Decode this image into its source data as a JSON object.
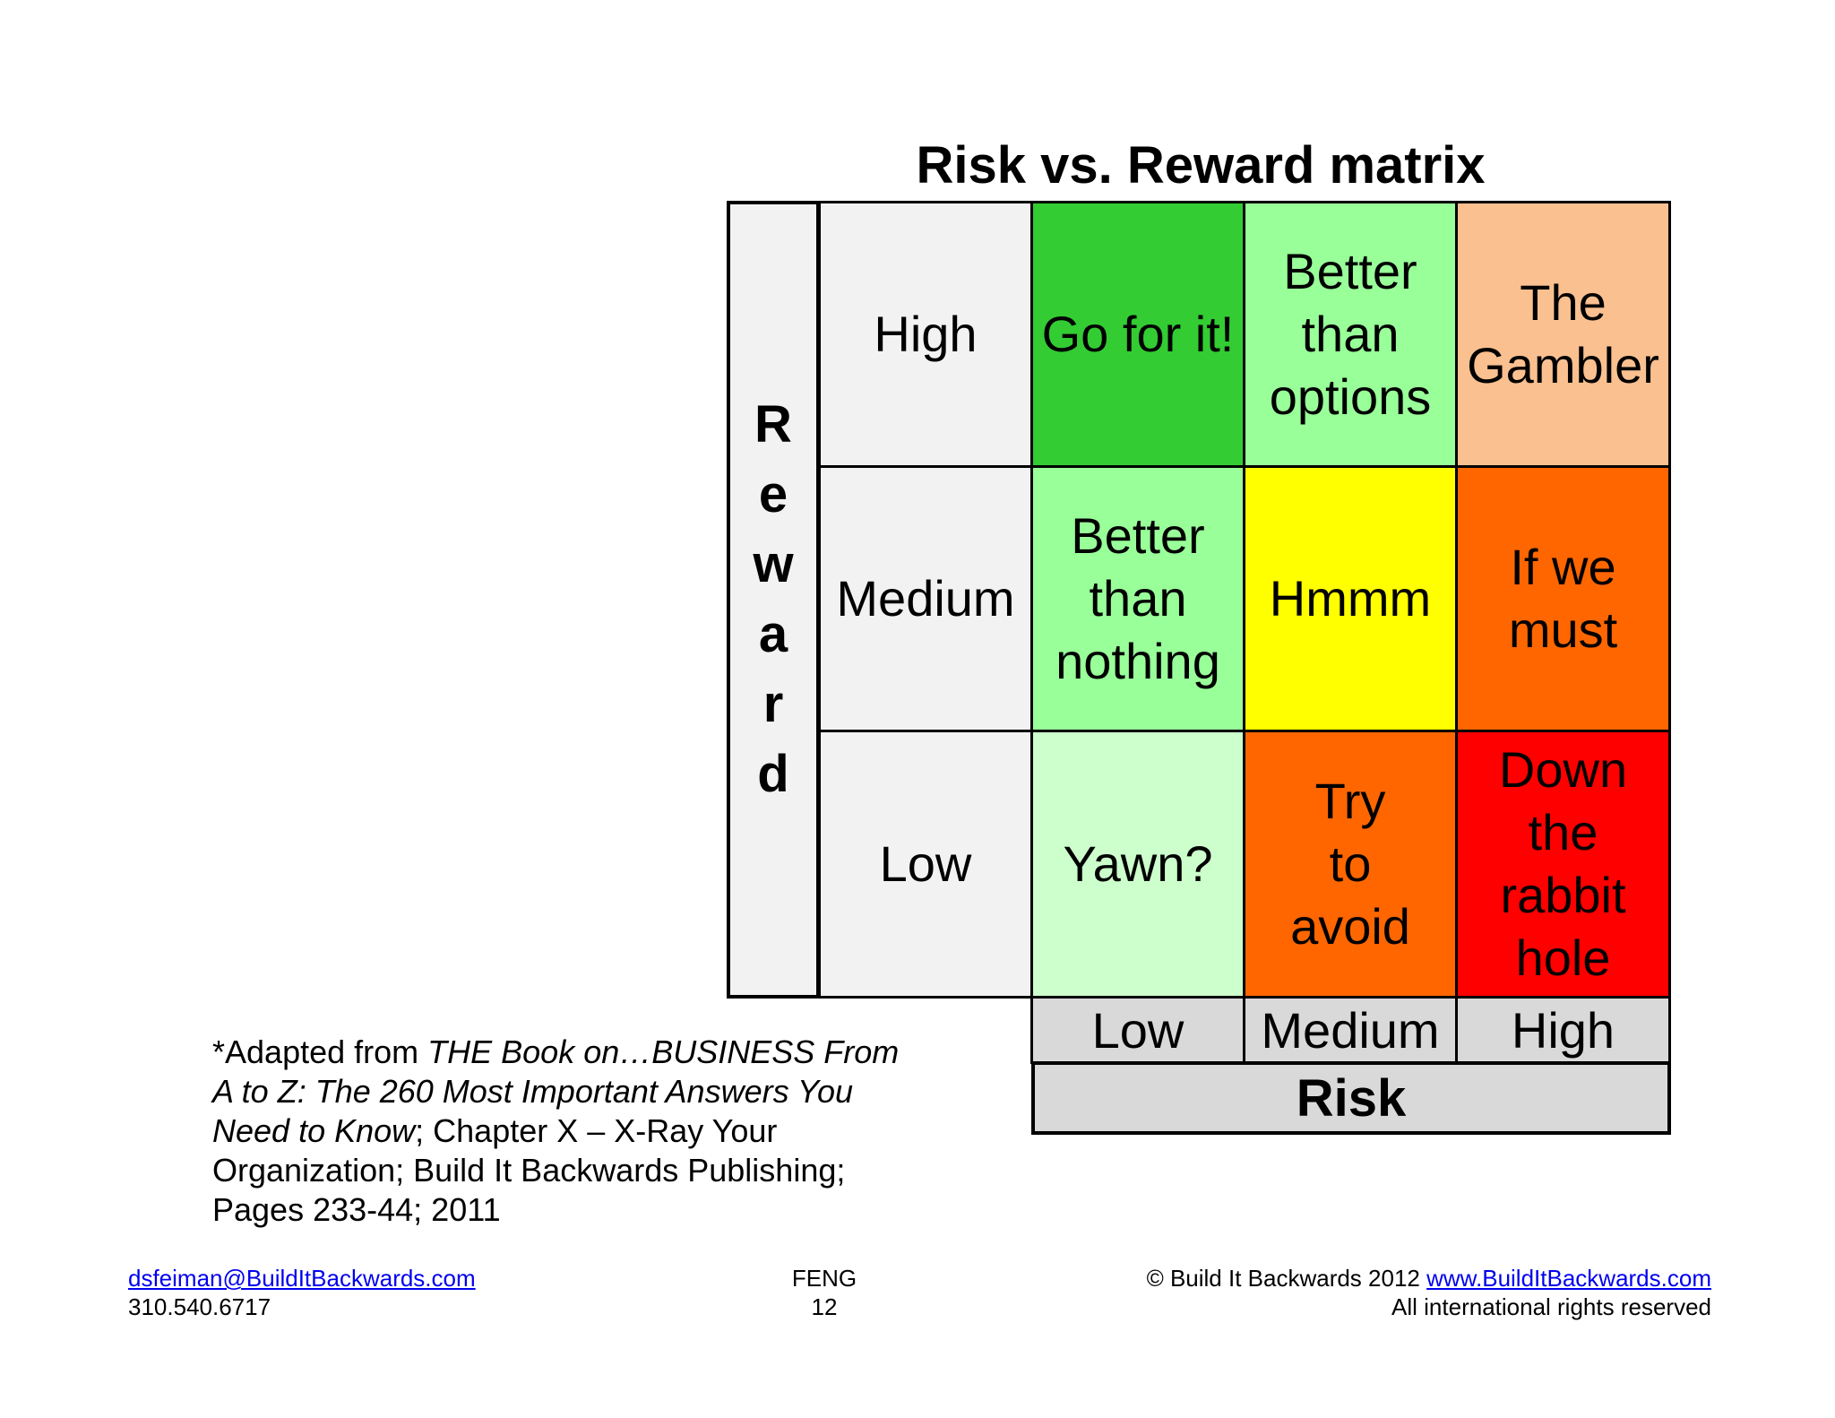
{
  "title": "Risk vs. Reward matrix",
  "reward_axis": {
    "letters": [
      "R",
      "e",
      "w",
      "a",
      "r",
      "d"
    ]
  },
  "rows": [
    {
      "label": "High",
      "cells": [
        {
          "text": "Go for it!",
          "color": "#33cc33"
        },
        {
          "text": "Better than options",
          "color": "#99ff99"
        },
        {
          "text": "The Gambler",
          "color": "#fac090"
        }
      ]
    },
    {
      "label": "Medium",
      "cells": [
        {
          "text": "Better than nothing",
          "color": "#99ff99"
        },
        {
          "text": "Hmmm",
          "color": "#ffff00"
        },
        {
          "text": "If we must",
          "color": "#ff6600"
        }
      ]
    },
    {
      "label": "Low",
      "cells": [
        {
          "text": "Yawn?",
          "color": "#ccffcc"
        },
        {
          "text": "Try to avoid",
          "color": "#ff6600"
        },
        {
          "text": "Down the rabbit hole",
          "color": "#ff0000"
        }
      ]
    }
  ],
  "risk_axis": {
    "labels": [
      "Low",
      "Medium",
      "High"
    ],
    "title": "Risk"
  },
  "citation": {
    "p1": "*Adapted from ",
    "i1": "THE Book on…BUSINESS From A to Z: The 260 Most Important Answers You Need to Know",
    "p2": "; Chapter X – X-Ray Your Organization; Build It Backwards Publishing; Pages 233-44; 2011"
  },
  "footer": {
    "email": "dsfeiman@BuildItBackwards.com",
    "phone": "310.540.6717",
    "center_line1": "FENG",
    "page_number": "12",
    "copyright": "© Build It Backwards 2012",
    "website": "www.BuildItBackwards.com",
    "rights": "All international rights reserved"
  }
}
